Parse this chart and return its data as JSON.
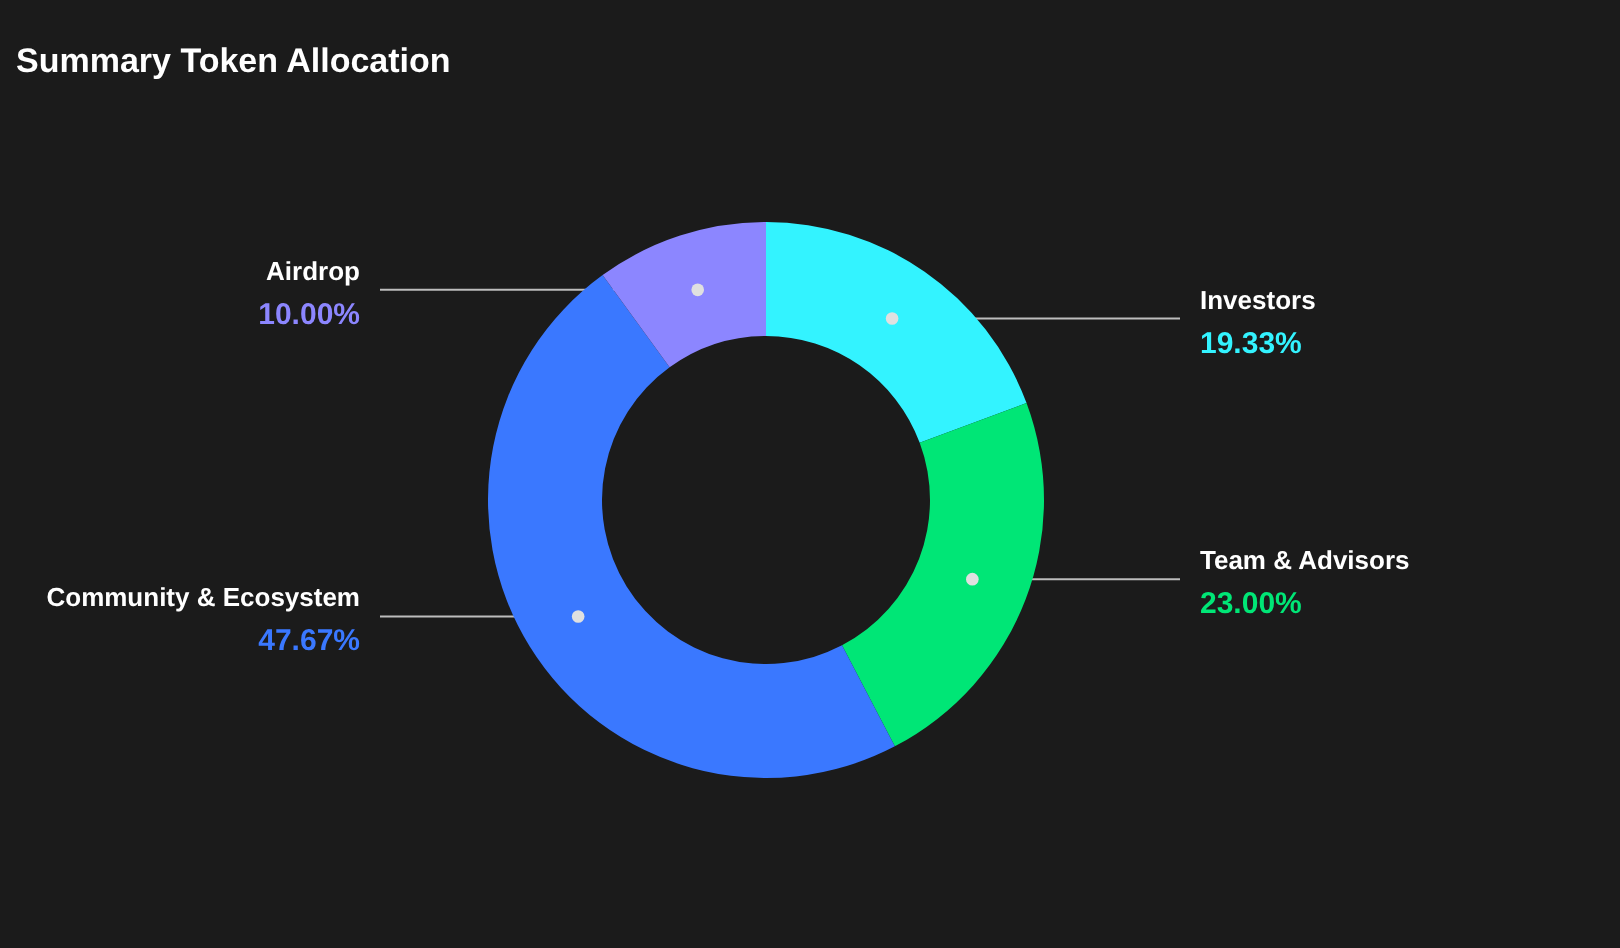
{
  "chart_data": {
    "type": "donut",
    "title": "Summary Token Allocation",
    "categories": [
      "Investors",
      "Team & Advisors",
      "Community & Ecosystem",
      "Airdrop"
    ],
    "values": [
      19.33,
      23.0,
      47.67,
      10.0
    ],
    "value_labels": [
      "19.33%",
      "23.00%",
      "47.67%",
      "10.00%"
    ],
    "colors": [
      "#33f3ff",
      "#00e676",
      "#3a78ff",
      "#8c86ff"
    ]
  }
}
